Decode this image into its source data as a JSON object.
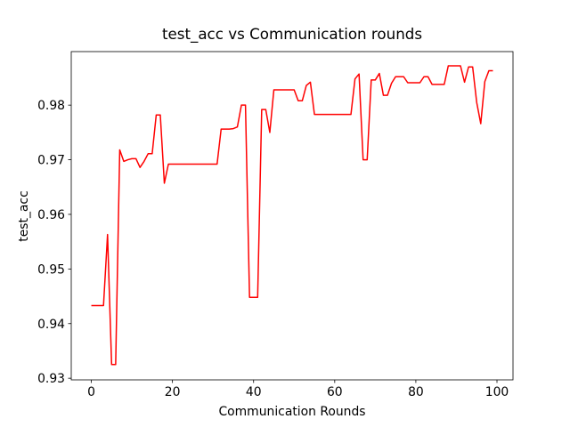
{
  "chart_data": {
    "type": "line",
    "title": "test_acc vs Communication rounds",
    "xlabel": "Communication Rounds",
    "ylabel": "test_acc",
    "x": [
      0,
      1,
      2,
      3,
      4,
      5,
      6,
      7,
      8,
      9,
      10,
      11,
      12,
      13,
      14,
      15,
      16,
      17,
      18,
      19,
      20,
      21,
      22,
      23,
      24,
      25,
      26,
      27,
      28,
      29,
      30,
      31,
      32,
      33,
      34,
      35,
      36,
      37,
      38,
      39,
      40,
      41,
      42,
      43,
      44,
      45,
      46,
      47,
      48,
      49,
      50,
      51,
      52,
      53,
      54,
      55,
      56,
      57,
      58,
      59,
      60,
      61,
      62,
      63,
      64,
      65,
      66,
      67,
      68,
      69,
      70,
      71,
      72,
      73,
      74,
      75,
      76,
      77,
      78,
      79,
      80,
      81,
      82,
      83,
      84,
      85,
      86,
      87,
      88,
      89,
      90,
      91,
      92,
      93,
      94,
      95,
      96,
      97,
      98,
      99
    ],
    "series": [
      {
        "color": "#ff0000",
        "values": [
          0.9433,
          0.9433,
          0.9433,
          0.9433,
          0.9563,
          0.9325,
          0.9325,
          0.9718,
          0.9697,
          0.97,
          0.9702,
          0.9702,
          0.9686,
          0.9697,
          0.9711,
          0.9711,
          0.9782,
          0.9782,
          0.9657,
          0.9692,
          0.9692,
          0.9692,
          0.9692,
          0.9692,
          0.9692,
          0.9692,
          0.9692,
          0.9692,
          0.9692,
          0.9692,
          0.9692,
          0.9692,
          0.9756,
          0.9756,
          0.9756,
          0.9757,
          0.976,
          0.98,
          0.98,
          0.9448,
          0.9448,
          0.9448,
          0.9792,
          0.9792,
          0.975,
          0.9828,
          0.9828,
          0.9828,
          0.9828,
          0.9828,
          0.9828,
          0.9808,
          0.9808,
          0.9836,
          0.9842,
          0.9783,
          0.9783,
          0.9783,
          0.9783,
          0.9783,
          0.9783,
          0.9783,
          0.9783,
          0.9783,
          0.9783,
          0.9848,
          0.9857,
          0.97,
          0.97,
          0.9846,
          0.9846,
          0.9858,
          0.9818,
          0.9818,
          0.984,
          0.9852,
          0.9852,
          0.9852,
          0.9841,
          0.9841,
          0.9841,
          0.9841,
          0.9852,
          0.9852,
          0.9838,
          0.9838,
          0.9838,
          0.9838,
          0.9872,
          0.9872,
          0.9872,
          0.9872,
          0.9842,
          0.987,
          0.987,
          0.9805,
          0.9766,
          0.9843,
          0.9863,
          0.9863
        ]
      }
    ],
    "xlim": [
      -4.95,
      103.95
    ],
    "xticks": [
      0,
      20,
      40,
      60,
      80,
      100
    ],
    "ylim": [
      0.9297,
      0.9898
    ],
    "yticks": [
      0.93,
      0.94,
      0.95,
      0.96,
      0.97,
      0.98
    ]
  }
}
